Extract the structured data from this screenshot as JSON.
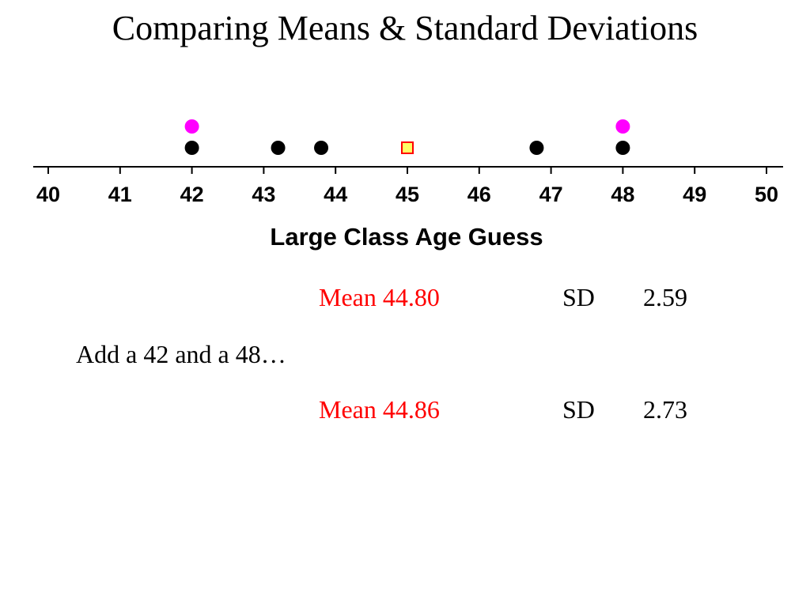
{
  "slide": {
    "title": "Comparing Means & Standard Deviations",
    "note": "Add a 42 and a 48…"
  },
  "stats": {
    "before": {
      "mean_label": "Mean 44.80",
      "sd_label": "SD",
      "sd_value": "2.59"
    },
    "after": {
      "mean_label": "Mean 44.86",
      "sd_label": "SD",
      "sd_value": "2.73"
    }
  },
  "chart_data": {
    "type": "scatter",
    "subtype": "dot plot",
    "xlabel": "Large Class Age Guess",
    "xlim": [
      40,
      50
    ],
    "ticks": [
      40,
      41,
      42,
      43,
      44,
      45,
      46,
      47,
      48,
      49,
      50
    ],
    "grid": false,
    "colors": {
      "original": "#000000",
      "added": "#ff00ff",
      "mean_marker_fill": "#ffff66",
      "mean_marker_edge": "#ff0000"
    },
    "series": [
      {
        "values": [
          42,
          43.2,
          43.8,
          46.8,
          48
        ],
        "color": "#000000"
      },
      {
        "values": [
          42,
          48
        ],
        "color": "#ff00ff"
      }
    ],
    "mean_marker": 45
  }
}
